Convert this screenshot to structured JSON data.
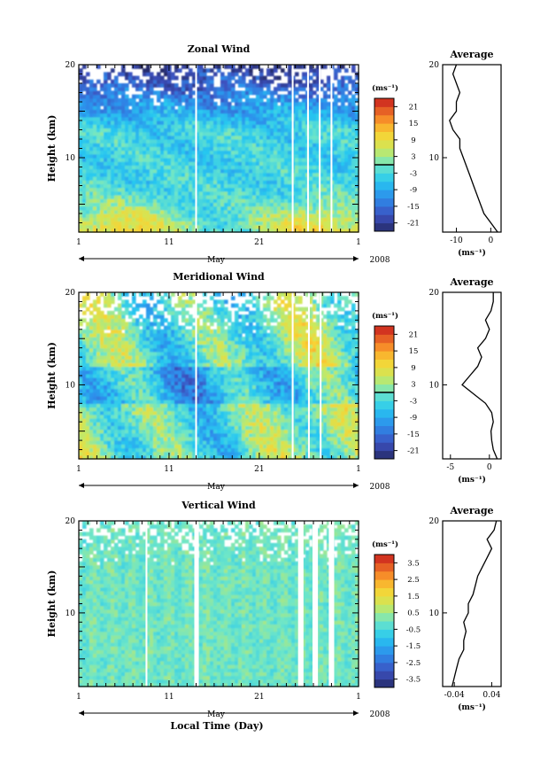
{
  "x_axis_title": "Local Time (Day)",
  "chart_data": [
    {
      "type": "heatmap",
      "title": "Zonal Wind",
      "ylabel": "Height (km)",
      "xlabel": "May",
      "year": "2008",
      "x_ticks": [
        "1",
        "11",
        "21",
        "1"
      ],
      "y_ticks": [
        "10",
        "20"
      ],
      "xlim_day": [
        1,
        32
      ],
      "ylim_km": [
        2,
        20
      ],
      "unit": "(ms⁻¹)",
      "colorbar": {
        "ticks": [
          "21",
          "15",
          "9",
          "3",
          "-3",
          "-9",
          "-15",
          "-21"
        ],
        "range": [
          -24,
          24
        ],
        "zero_line": 0
      },
      "profile": {
        "title": "Average",
        "y_ticks": [
          "10",
          "20"
        ],
        "x_ticks": [
          "-10",
          "0"
        ],
        "xlim": [
          -14,
          3
        ],
        "xlabel": "(ms⁻¹)",
        "heights_km": [
          2,
          3,
          4,
          5,
          6,
          7,
          8,
          9,
          10,
          11,
          12,
          13,
          14,
          15,
          16,
          17,
          18,
          19,
          20
        ],
        "values": [
          2,
          0,
          -2,
          -3,
          -4,
          -5,
          -6,
          -7,
          -8,
          -9,
          -9,
          -11,
          -12,
          -10,
          -10,
          -9,
          -10,
          -11,
          -10
        ]
      }
    },
    {
      "type": "heatmap",
      "title": "Meridional Wind",
      "ylabel": "Height (km)",
      "xlabel": "May",
      "year": "2008",
      "x_ticks": [
        "1",
        "11",
        "21",
        "1"
      ],
      "y_ticks": [
        "10",
        "20"
      ],
      "xlim_day": [
        1,
        32
      ],
      "ylim_km": [
        2,
        20
      ],
      "unit": "(ms⁻¹)",
      "colorbar": {
        "ticks": [
          "21",
          "15",
          "9",
          "3",
          "-3",
          "-9",
          "-15",
          "-21"
        ],
        "range": [
          -24,
          24
        ],
        "zero_line": 0
      },
      "profile": {
        "title": "Average",
        "y_ticks": [
          "10",
          "20"
        ],
        "x_ticks": [
          "-5",
          "0"
        ],
        "xlim": [
          -6,
          1.5
        ],
        "xlabel": "(ms⁻¹)",
        "heights_km": [
          2,
          3,
          4,
          5,
          6,
          7,
          8,
          9,
          10,
          11,
          12,
          13,
          14,
          15,
          16,
          17,
          18,
          19,
          20
        ],
        "values": [
          1,
          0.5,
          0.3,
          0.2,
          0.5,
          0.3,
          -0.5,
          -2,
          -3.5,
          -2.5,
          -1.5,
          -1,
          -1.5,
          -0.5,
          0,
          -0.5,
          0.2,
          0.5,
          0.5
        ]
      }
    },
    {
      "type": "heatmap",
      "title": "Vertical Wind",
      "ylabel": "Height (km)",
      "xlabel": "May",
      "year": "2008",
      "x_ticks": [
        "1",
        "11",
        "21",
        "1"
      ],
      "y_ticks": [
        "10",
        "20"
      ],
      "xlim_day": [
        1,
        32
      ],
      "ylim_km": [
        2,
        20
      ],
      "unit": "(ms⁻¹)",
      "colorbar": {
        "ticks": [
          "3.5",
          "2.5",
          "1.5",
          "0.5",
          "-0.5",
          "-1.5",
          "-2.5",
          "-3.5"
        ],
        "range": [
          -4,
          4
        ]
      },
      "profile": {
        "title": "Average",
        "y_ticks": [
          "10",
          "20"
        ],
        "x_ticks": [
          "-0.04",
          "0.04"
        ],
        "xlim": [
          -0.065,
          0.06
        ],
        "xlabel": "(ms⁻¹)",
        "heights_km": [
          2,
          3,
          4,
          5,
          6,
          7,
          8,
          9,
          10,
          11,
          12,
          13,
          14,
          15,
          16,
          17,
          18,
          19,
          20
        ],
        "values": [
          -0.045,
          -0.04,
          -0.035,
          -0.03,
          -0.02,
          -0.02,
          -0.015,
          -0.02,
          -0.01,
          -0.01,
          0.0,
          0.005,
          0.01,
          0.02,
          0.03,
          0.04,
          0.03,
          0.045,
          0.05
        ]
      }
    }
  ]
}
